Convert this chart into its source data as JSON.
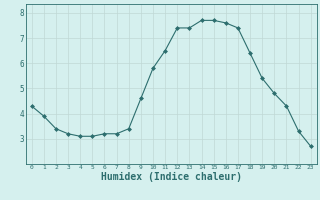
{
  "x": [
    0,
    1,
    2,
    3,
    4,
    5,
    6,
    7,
    8,
    9,
    10,
    11,
    12,
    13,
    14,
    15,
    16,
    17,
    18,
    19,
    20,
    21,
    22,
    23
  ],
  "y": [
    4.3,
    3.9,
    3.4,
    3.2,
    3.1,
    3.1,
    3.2,
    3.2,
    3.4,
    4.6,
    5.8,
    6.5,
    7.4,
    7.4,
    7.7,
    7.7,
    7.6,
    7.4,
    6.4,
    5.4,
    4.8,
    4.3,
    3.3,
    2.7
  ],
  "line_color": "#2d6e6e",
  "marker": "D",
  "marker_size": 2,
  "bg_color": "#d5f0ee",
  "grid_color": "#c0d8d5",
  "axes_color": "#2d6e6e",
  "xlabel": "Humidex (Indice chaleur)",
  "xlabel_fontsize": 7,
  "xlim": [
    -0.5,
    23.5
  ],
  "ylim": [
    2.0,
    8.35
  ],
  "yticks": [
    3,
    4,
    5,
    6,
    7,
    8
  ],
  "xticks": [
    0,
    1,
    2,
    3,
    4,
    5,
    6,
    7,
    8,
    9,
    10,
    11,
    12,
    13,
    14,
    15,
    16,
    17,
    18,
    19,
    20,
    21,
    22,
    23
  ]
}
